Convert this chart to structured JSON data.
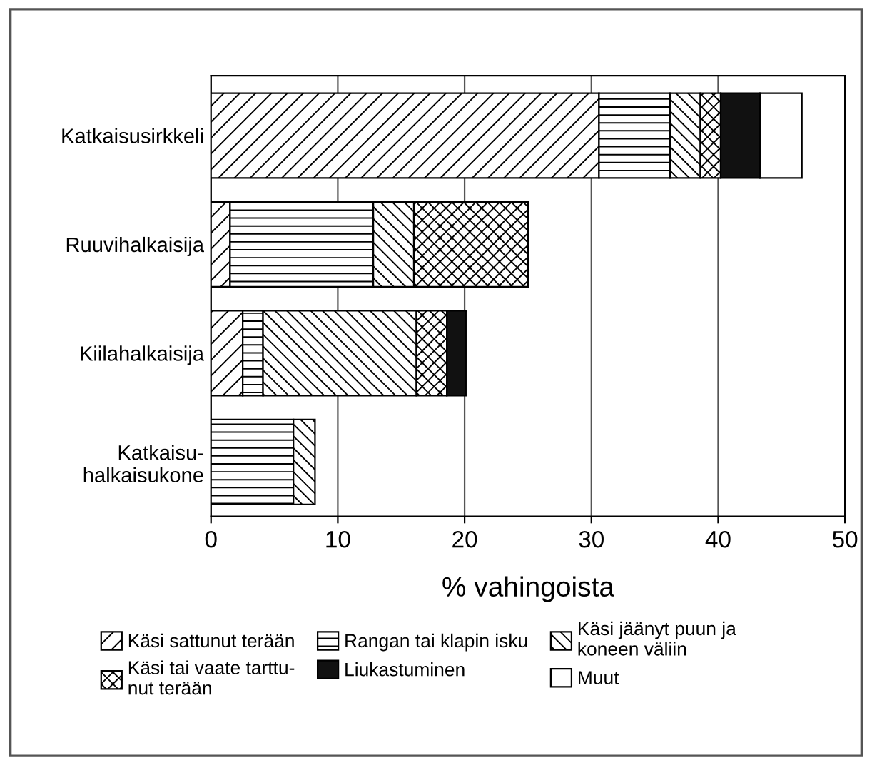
{
  "chart_data": {
    "type": "bar",
    "orientation": "horizontal",
    "stacked": true,
    "categories": [
      "Katkaisusirkkeli",
      "Ruuvihalkaisija",
      "Kiilahalkaisija",
      "Katkaisu-\nhalkaisukone"
    ],
    "series": [
      {
        "name": "Käsi sattunut terään",
        "color": "#000000",
        "values": [
          30.6,
          1.5,
          2.5,
          null
        ]
      },
      {
        "name": "Rangan tai klapin isku",
        "color": "#000000",
        "values": [
          5.6,
          11.3,
          1.6,
          6.5
        ]
      },
      {
        "name": "Käsi jäänyt puun ja\nkoneen väliin",
        "color": "#000000",
        "values": [
          2.4,
          3.2,
          12.1,
          1.7
        ]
      },
      {
        "name": "Käsi tai vaate tarttu-\nnut terään",
        "color": "#000000",
        "values": [
          1.6,
          9.0,
          2.4,
          null
        ]
      },
      {
        "name": "Liukastuminen",
        "color": "#111111",
        "values": [
          3.1,
          null,
          1.5,
          null
        ]
      },
      {
        "name": "Muut",
        "color": "#ffffff",
        "values": [
          3.3,
          null,
          null,
          null
        ]
      }
    ],
    "xlabel": "% vahingoista",
    "xlim": [
      0,
      50
    ],
    "xticks": [
      0,
      10,
      20,
      30,
      40,
      50
    ],
    "grid": "x",
    "legend": "bottom"
  }
}
